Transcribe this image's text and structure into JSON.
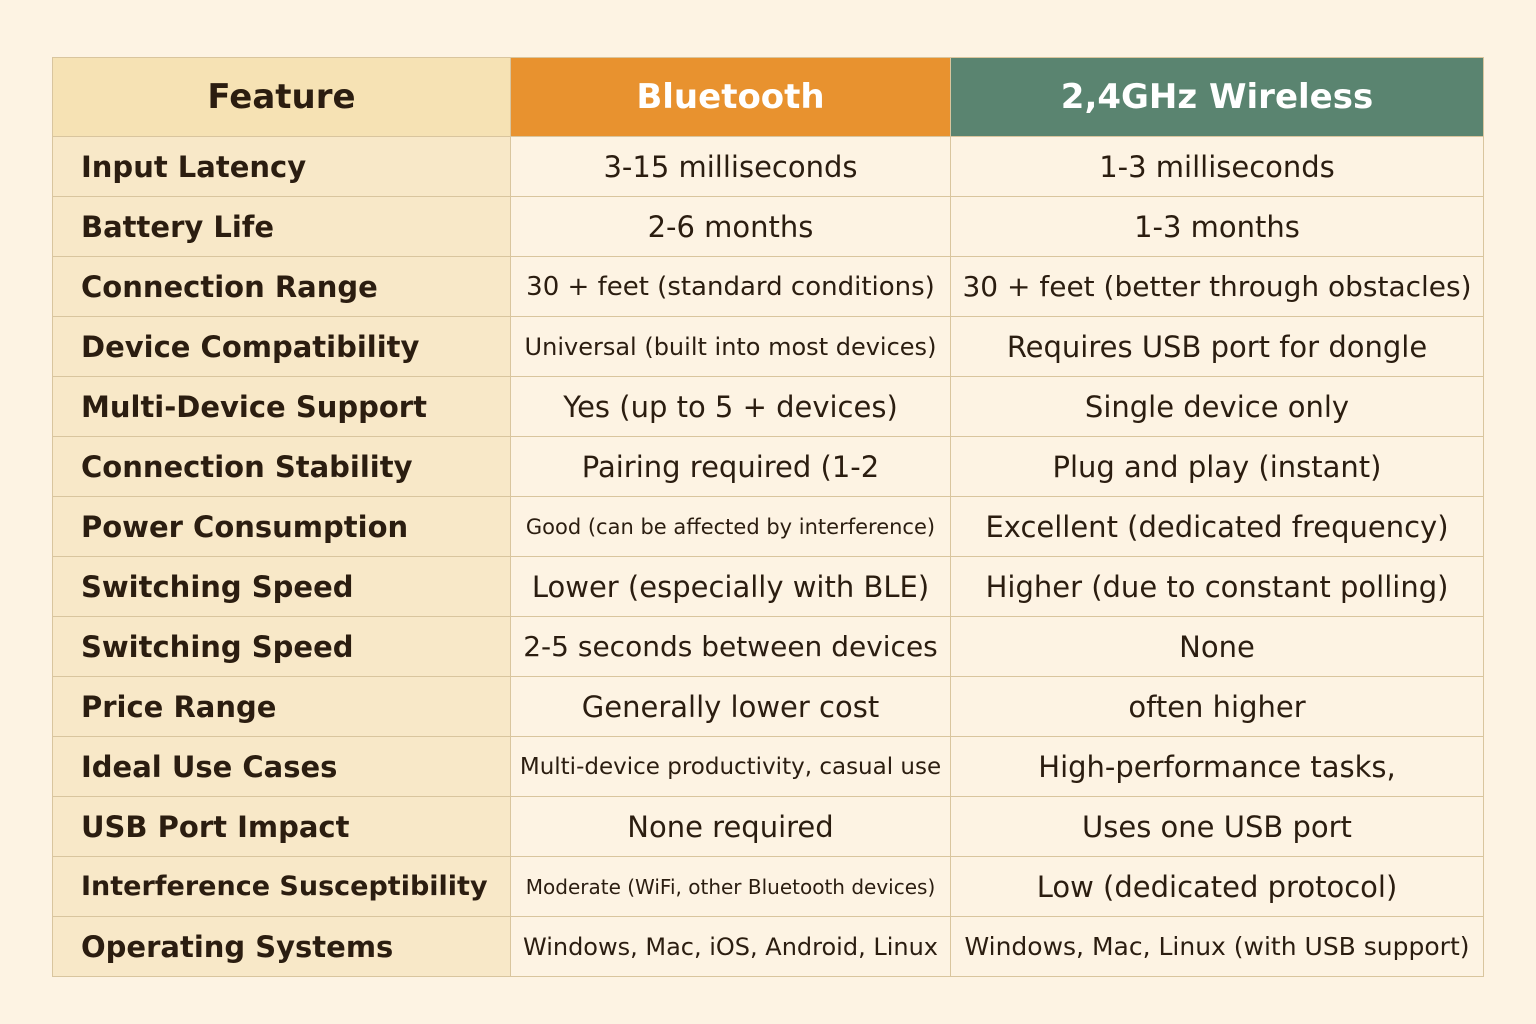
{
  "table": {
    "header": [
      "Feature",
      "Bluetooth",
      "2,4GHz Wireless"
    ],
    "rows": [
      [
        "Input Latency",
        "3-15 milliseconds",
        "1-3 milliseconds"
      ],
      [
        "Battery Life",
        "2-6 months",
        "1-3 months"
      ],
      [
        "Connection Range",
        "30 + feet (standard conditions)",
        "30 + feet (better through obstacles)"
      ],
      [
        "Device Compatibility",
        "Universal (built into most devices)",
        "Requires USB port for dongle"
      ],
      [
        "Multi-Device Support",
        "Yes (up to 5 + devices)",
        "Single device only"
      ],
      [
        "Connection Stability",
        "Pairing required (1-2",
        "Plug and play (instant)"
      ],
      [
        "Power Consumption",
        "Good (can be affected by interference)",
        "Excellent (dedicated frequency)"
      ],
      [
        "Switching Speed",
        "Lower (especially with BLE)",
        "Higher (due to constant polling)"
      ],
      [
        "Switching Speed",
        "2-5 seconds between devices",
        "None"
      ],
      [
        "Price Range",
        "Generally lower cost",
        "often higher"
      ],
      [
        "Ideal Use Cases",
        "Multi-device productivity, casual use",
        "High-performance tasks,"
      ],
      [
        "USB Port Impact",
        "None required",
        "Uses one USB port"
      ],
      [
        "Interference Susceptibility",
        "Moderate (WiFi, other Bluetooth devices)",
        "Low (dedicated protocol)"
      ],
      [
        "Operating Systems",
        "Windows, Mac, iOS, Android, Linux",
        "Windows, Mac, Linux (with USB support)"
      ]
    ]
  }
}
